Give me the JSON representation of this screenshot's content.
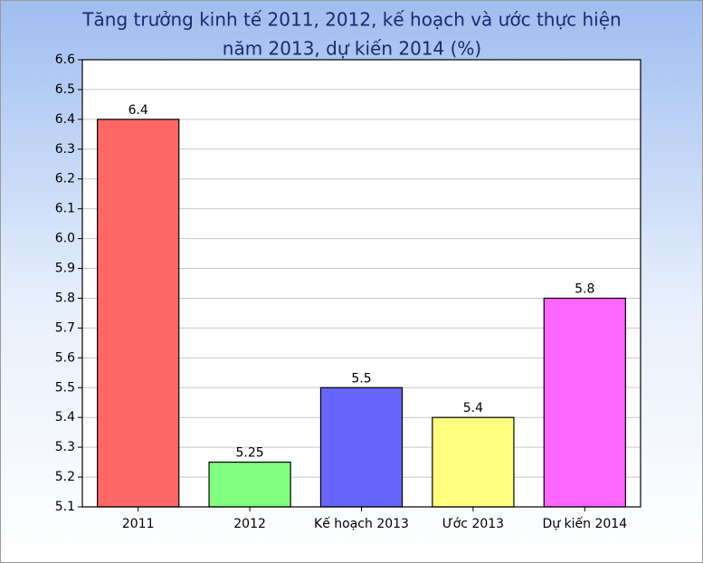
{
  "chart_data": {
    "type": "bar",
    "title": [
      "Tăng trưởng kinh tế 2011, 2012, kế hoạch và ước thực hiện",
      "năm 2013, dự kiến 2014 (%)"
    ],
    "categories": [
      "2011",
      "2012",
      "Kế hoạch 2013",
      "Ước 2013",
      "Dự kiến 2014"
    ],
    "values": [
      6.4,
      5.25,
      5.5,
      5.4,
      5.8
    ],
    "colors": [
      "#ff6666",
      "#80ff80",
      "#6666ff",
      "#ffff80",
      "#ff66ff"
    ],
    "ylim": [
      5.1,
      6.6
    ],
    "yticks": [
      5.1,
      5.2,
      5.3,
      5.4,
      5.5,
      5.6,
      5.7,
      5.8,
      5.9,
      {
        "value": 6,
        "label": "6.0"
      },
      6.1,
      6.2,
      6.3,
      6.4,
      6.5,
      6.6
    ],
    "grid": true
  }
}
